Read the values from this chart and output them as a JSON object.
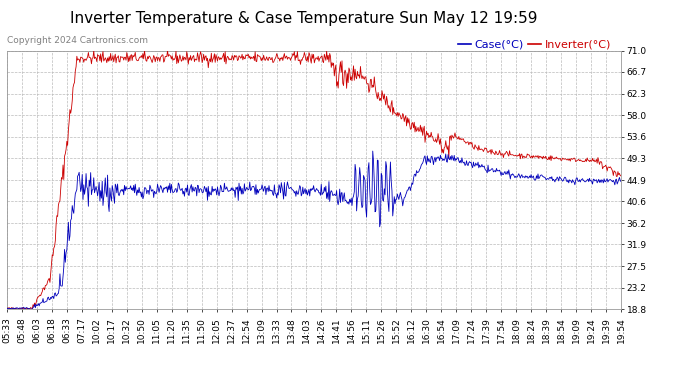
{
  "title": "Inverter Temperature & Case Temperature Sun May 12 19:59",
  "copyright": "Copyright 2024 Cartronics.com",
  "legend_case": "Case(°C)",
  "legend_inverter": "Inverter(°C)",
  "y_ticks": [
    18.8,
    23.2,
    27.5,
    31.9,
    36.2,
    40.6,
    44.9,
    49.3,
    53.6,
    58.0,
    62.3,
    66.7,
    71.0
  ],
  "ylim": [
    18.8,
    71.0
  ],
  "x_tick_labels": [
    "05:33",
    "05:48",
    "06:03",
    "06:18",
    "06:33",
    "07:17",
    "10:02",
    "10:17",
    "10:32",
    "10:50",
    "11:05",
    "11:20",
    "11:35",
    "11:50",
    "12:05",
    "12:37",
    "12:54",
    "13:09",
    "13:33",
    "13:48",
    "14:03",
    "14:26",
    "14:41",
    "14:56",
    "15:11",
    "15:26",
    "15:52",
    "16:12",
    "16:30",
    "16:54",
    "17:09",
    "17:24",
    "17:39",
    "17:54",
    "18:09",
    "18:24",
    "18:39",
    "18:54",
    "19:09",
    "19:24",
    "19:39",
    "19:54"
  ],
  "background_color": "#ffffff",
  "grid_color": "#bbbbbb",
  "case_color": "#0000bb",
  "inverter_color": "#cc0000",
  "title_fontsize": 11,
  "axis_fontsize": 6.5,
  "legend_fontsize": 8,
  "copyright_fontsize": 6.5
}
